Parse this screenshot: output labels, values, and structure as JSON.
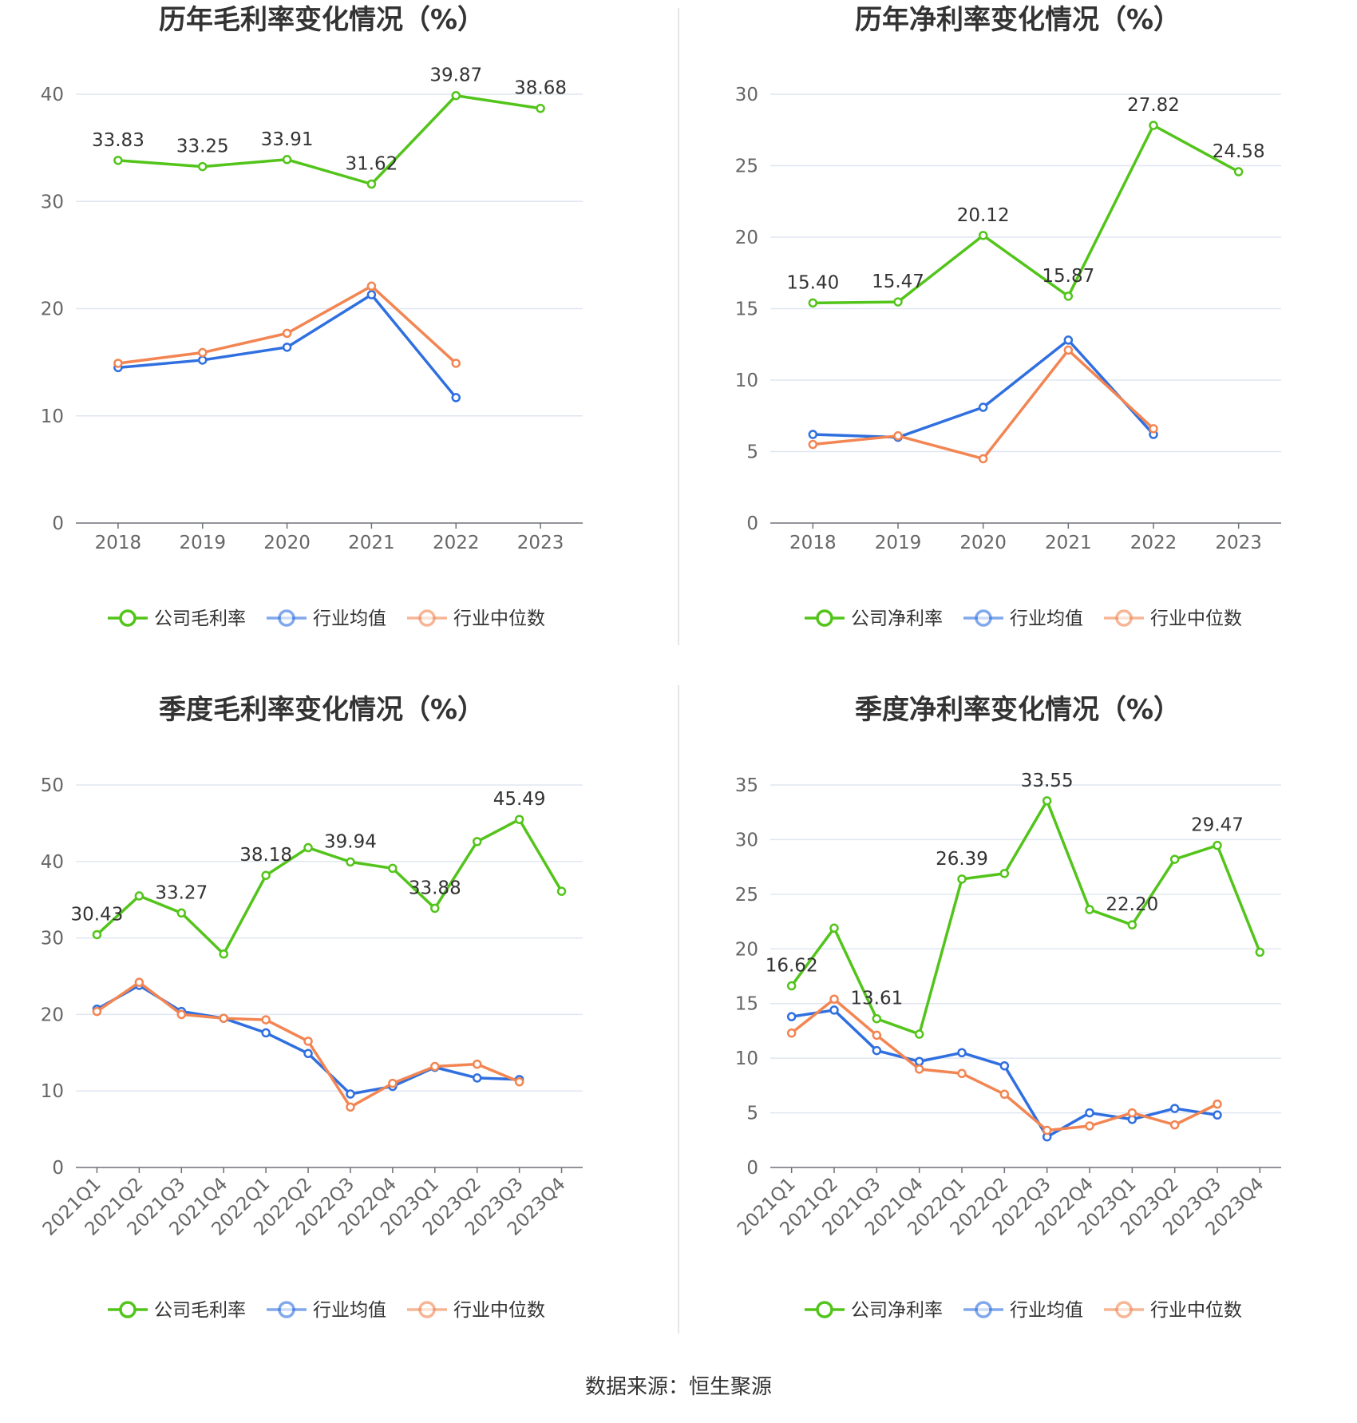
{
  "source": "数据来源：恒生聚源",
  "colors": {
    "company": "#52c41a",
    "avg": "#2f6fe0",
    "median": "#f28552"
  },
  "chart_data": [
    {
      "type": "line",
      "title": "历年毛利率变化情况（%）",
      "categories": [
        "2018",
        "2019",
        "2020",
        "2021",
        "2022",
        "2023"
      ],
      "ylim": [
        0,
        40
      ],
      "yticks": [
        0,
        10,
        20,
        30,
        40
      ],
      "grid": true,
      "legend": "bottom",
      "series": [
        {
          "name": "公司毛利率",
          "key": "company",
          "values": [
            33.83,
            33.25,
            33.91,
            31.62,
            39.87,
            38.68
          ]
        },
        {
          "name": "行业均值",
          "key": "avg",
          "values": [
            14.5,
            15.2,
            16.4,
            21.3,
            11.7,
            null
          ]
        },
        {
          "name": "行业中位数",
          "key": "median",
          "values": [
            14.9,
            15.9,
            17.7,
            22.1,
            14.9,
            null
          ]
        }
      ],
      "data_labels": [
        {
          "index": 0,
          "text": "33.83"
        },
        {
          "index": 1,
          "text": "33.25"
        },
        {
          "index": 2,
          "text": "33.91"
        },
        {
          "index": 3,
          "text": "31.62"
        },
        {
          "index": 4,
          "text": "39.87"
        },
        {
          "index": 5,
          "text": "38.68"
        }
      ]
    },
    {
      "type": "line",
      "title": "历年净利率变化情况（%）",
      "categories": [
        "2018",
        "2019",
        "2020",
        "2021",
        "2022",
        "2023"
      ],
      "ylim": [
        0,
        30
      ],
      "yticks": [
        0,
        5,
        10,
        15,
        20,
        25,
        30
      ],
      "grid": true,
      "legend": "bottom",
      "series": [
        {
          "name": "公司净利率",
          "key": "company",
          "values": [
            15.4,
            15.47,
            20.12,
            15.87,
            27.82,
            24.58
          ]
        },
        {
          "name": "行业均值",
          "key": "avg",
          "values": [
            6.2,
            6.0,
            8.1,
            12.8,
            6.2,
            null
          ]
        },
        {
          "name": "行业中位数",
          "key": "median",
          "values": [
            5.5,
            6.1,
            4.5,
            12.1,
            6.6,
            null
          ]
        }
      ],
      "data_labels": [
        {
          "index": 0,
          "text": "15.40"
        },
        {
          "index": 1,
          "text": "15.47"
        },
        {
          "index": 2,
          "text": "20.12"
        },
        {
          "index": 3,
          "text": "15.87"
        },
        {
          "index": 4,
          "text": "27.82"
        },
        {
          "index": 5,
          "text": "24.58"
        }
      ]
    },
    {
      "type": "line",
      "title": "季度毛利率变化情况（%）",
      "categories": [
        "2021Q1",
        "2021Q2",
        "2021Q3",
        "2021Q4",
        "2022Q1",
        "2022Q2",
        "2022Q3",
        "2022Q4",
        "2023Q1",
        "2023Q2",
        "2023Q3",
        "2023Q4"
      ],
      "ylim": [
        0,
        50
      ],
      "yticks": [
        0,
        10,
        20,
        30,
        40,
        50
      ],
      "grid": true,
      "legend": "bottom",
      "series": [
        {
          "name": "公司毛利率",
          "key": "company",
          "values": [
            30.43,
            35.5,
            33.27,
            27.9,
            38.18,
            41.8,
            39.94,
            39.1,
            33.88,
            42.6,
            45.49,
            36.1
          ]
        },
        {
          "name": "行业均值",
          "key": "avg",
          "values": [
            20.7,
            23.8,
            20.4,
            19.5,
            17.6,
            14.9,
            9.6,
            10.6,
            13.1,
            11.7,
            11.5,
            null
          ]
        },
        {
          "name": "行业中位数",
          "key": "median",
          "values": [
            20.4,
            24.2,
            20.0,
            19.5,
            19.3,
            16.5,
            7.9,
            11.0,
            13.2,
            13.5,
            11.2,
            null
          ]
        }
      ],
      "data_labels": [
        {
          "index": 0,
          "text": "30.43"
        },
        {
          "index": 2,
          "text": "33.27"
        },
        {
          "index": 4,
          "text": "38.18"
        },
        {
          "index": 6,
          "text": "39.94"
        },
        {
          "index": 8,
          "text": "33.88"
        },
        {
          "index": 10,
          "text": "45.49"
        }
      ]
    },
    {
      "type": "line",
      "title": "季度净利率变化情况（%）",
      "categories": [
        "2021Q1",
        "2021Q2",
        "2021Q3",
        "2021Q4",
        "2022Q1",
        "2022Q2",
        "2022Q3",
        "2022Q4",
        "2023Q1",
        "2023Q2",
        "2023Q3",
        "2023Q4"
      ],
      "ylim": [
        0,
        35
      ],
      "yticks": [
        0,
        5,
        10,
        15,
        20,
        25,
        30,
        35
      ],
      "grid": true,
      "legend": "bottom",
      "series": [
        {
          "name": "公司净利率",
          "key": "company",
          "values": [
            16.62,
            21.9,
            13.61,
            12.2,
            26.39,
            26.9,
            33.55,
            23.6,
            22.2,
            28.2,
            29.47,
            19.7
          ]
        },
        {
          "name": "行业均值",
          "key": "avg",
          "values": [
            13.8,
            14.4,
            10.7,
            9.7,
            10.5,
            9.3,
            2.8,
            5.0,
            4.4,
            5.4,
            4.8,
            null
          ]
        },
        {
          "name": "行业中位数",
          "key": "median",
          "values": [
            12.3,
            15.4,
            12.1,
            9.0,
            8.6,
            6.7,
            3.4,
            3.8,
            5.0,
            3.9,
            5.8,
            null
          ]
        }
      ],
      "data_labels": [
        {
          "index": 0,
          "text": "16.62"
        },
        {
          "index": 2,
          "text": "13.61"
        },
        {
          "index": 4,
          "text": "26.39"
        },
        {
          "index": 6,
          "text": "33.55"
        },
        {
          "index": 8,
          "text": "22.20"
        },
        {
          "index": 10,
          "text": "29.47"
        }
      ]
    }
  ]
}
